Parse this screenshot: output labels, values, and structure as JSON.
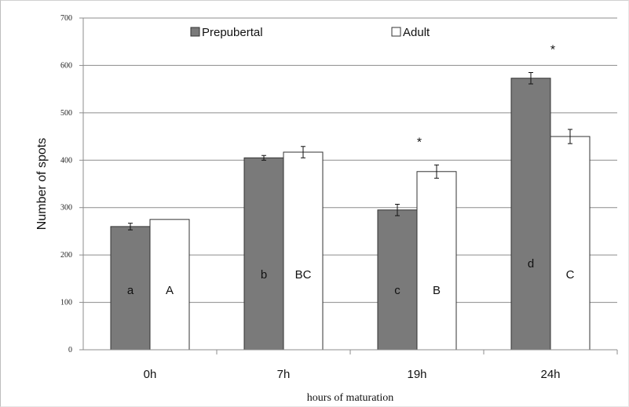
{
  "chart_data": {
    "type": "bar",
    "xlabel": "hours of maturation",
    "ylabel": "Number of spots",
    "ylim": [
      0,
      700
    ],
    "yticks": [
      0,
      100,
      200,
      300,
      400,
      500,
      600,
      700
    ],
    "grid": "horizontal",
    "legend_position": "top",
    "categories": [
      "0h",
      "7h",
      "19h",
      "24h"
    ],
    "series": [
      {
        "name": "Prepubertal",
        "color": "#7a7a7a",
        "values": [
          260,
          405,
          295,
          573
        ],
        "errors": [
          7,
          5,
          12,
          12
        ],
        "letters": [
          "a",
          "b",
          "c",
          "d"
        ]
      },
      {
        "name": "Adult",
        "color": "#ffffff",
        "values": [
          275,
          417,
          376,
          450
        ],
        "errors": [
          0,
          12,
          14,
          15
        ],
        "letters": [
          "A",
          "BC",
          "B",
          "C"
        ]
      }
    ],
    "significance_markers": [
      "",
      "",
      "*",
      "*"
    ]
  }
}
